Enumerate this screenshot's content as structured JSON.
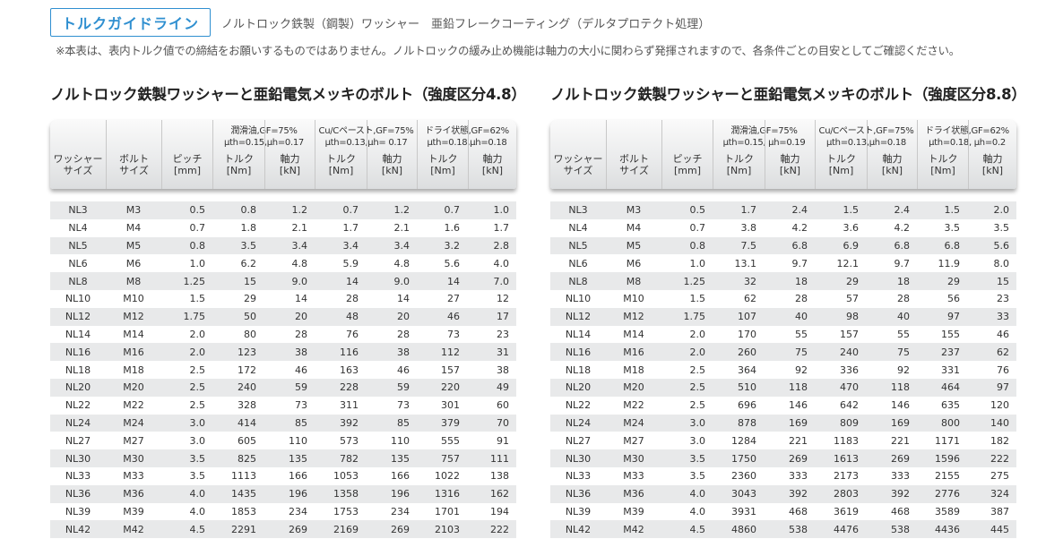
{
  "header": {
    "badge": "トルクガイドライン",
    "subtitle": "ノルトロック鉄製（鋼製）ワッシャー　亜鉛フレークコーティング（デルタプロテクト処理）",
    "notice": "※本表は、表内トルク値での締結をお願いするものではありません。ノルトロックの緩み止め機能は軸力の大小に関わらず発揮されますので、各条件ごとの目安としてご確認ください。"
  },
  "tables": [
    {
      "title": "ノルトロック鉄製ワッシャーと亜鉛電気メッキのボルト（強度区分4.8）",
      "columns": {
        "washer": "ワッシャーサイズ",
        "washer_l1": "ワッシャー",
        "washer_l2": "サイズ",
        "bolt_l1": "ボルト",
        "bolt_l2": "サイズ",
        "pitch_l1": "ピッチ",
        "pitch_l2": "[mm]",
        "torque_l1": "トルク",
        "torque_l2": "[Nm]",
        "axial_l1": "軸力",
        "axial_l2": "[kN]"
      },
      "groups": [
        {
          "line1": "潤滑油,GF=75%",
          "line2": "μth=0.15,μh=0.17"
        },
        {
          "line1": "Cu/Cペースト,GF=75%",
          "line2": "μth=0.13,μh= 0.17"
        },
        {
          "line1": "ドライ状態,GF=62%",
          "line2": "μth=0.18,μh=0.18"
        }
      ],
      "rows": [
        [
          "NL3",
          "M3",
          "0.5",
          "0.8",
          "1.2",
          "0.7",
          "1.2",
          "0.7",
          "1.0"
        ],
        [
          "NL4",
          "M4",
          "0.7",
          "1.8",
          "2.1",
          "1.7",
          "2.1",
          "1.6",
          "1.7"
        ],
        [
          "NL5",
          "M5",
          "0.8",
          "3.5",
          "3.4",
          "3.4",
          "3.4",
          "3.2",
          "2.8"
        ],
        [
          "NL6",
          "M6",
          "1.0",
          "6.2",
          "4.8",
          "5.9",
          "4.8",
          "5.6",
          "4.0"
        ],
        [
          "NL8",
          "M8",
          "1.25",
          "15",
          "9.0",
          "14",
          "9.0",
          "14",
          "7.0"
        ],
        [
          "NL10",
          "M10",
          "1.5",
          "29",
          "14",
          "28",
          "14",
          "27",
          "12"
        ],
        [
          "NL12",
          "M12",
          "1.75",
          "50",
          "20",
          "48",
          "20",
          "46",
          "17"
        ],
        [
          "NL14",
          "M14",
          "2.0",
          "80",
          "28",
          "76",
          "28",
          "73",
          "23"
        ],
        [
          "NL16",
          "M16",
          "2.0",
          "123",
          "38",
          "116",
          "38",
          "112",
          "31"
        ],
        [
          "NL18",
          "M18",
          "2.5",
          "172",
          "46",
          "163",
          "46",
          "157",
          "38"
        ],
        [
          "NL20",
          "M20",
          "2.5",
          "240",
          "59",
          "228",
          "59",
          "220",
          "49"
        ],
        [
          "NL22",
          "M22",
          "2.5",
          "328",
          "73",
          "311",
          "73",
          "301",
          "60"
        ],
        [
          "NL24",
          "M24",
          "3.0",
          "414",
          "85",
          "392",
          "85",
          "379",
          "70"
        ],
        [
          "NL27",
          "M27",
          "3.0",
          "605",
          "110",
          "573",
          "110",
          "555",
          "91"
        ],
        [
          "NL30",
          "M30",
          "3.5",
          "825",
          "135",
          "782",
          "135",
          "757",
          "111"
        ],
        [
          "NL33",
          "M33",
          "3.5",
          "1113",
          "166",
          "1053",
          "166",
          "1022",
          "138"
        ],
        [
          "NL36",
          "M36",
          "4.0",
          "1435",
          "196",
          "1358",
          "196",
          "1316",
          "162"
        ],
        [
          "NL39",
          "M39",
          "4.0",
          "1853",
          "234",
          "1753",
          "234",
          "1701",
          "194"
        ],
        [
          "NL42",
          "M42",
          "4.5",
          "2291",
          "269",
          "2169",
          "269",
          "2103",
          "222"
        ]
      ]
    },
    {
      "title": "ノルトロック鉄製ワッシャーと亜鉛電気メッキのボルト（強度区分8.8）",
      "columns": {
        "washer_l1": "ワッシャー",
        "washer_l2": "サイズ",
        "bolt_l1": "ボルト",
        "bolt_l2": "サイズ",
        "pitch_l1": "ピッチ",
        "pitch_l2": "[mm]",
        "torque_l1": "トルク",
        "torque_l2": "[Nm]",
        "axial_l1": "軸力",
        "axial_l2": "[kN]"
      },
      "groups": [
        {
          "line1": "潤滑油,GF=75%",
          "line2": "μth=0.15, μh=0.19"
        },
        {
          "line1": "Cu/Cペースト,GF=75%",
          "line2": "μth=0.13,μh=0.18"
        },
        {
          "line1": "ドライ状態,GF=62%",
          "line2": "μth=0.18, μh=0.2"
        }
      ],
      "rows": [
        [
          "NL3",
          "M3",
          "0.5",
          "1.7",
          "2.4",
          "1.5",
          "2.4",
          "1.5",
          "2.0"
        ],
        [
          "NL4",
          "M4",
          "0.7",
          "3.8",
          "4.2",
          "3.6",
          "4.2",
          "3.5",
          "3.5"
        ],
        [
          "NL5",
          "M5",
          "0.8",
          "7.5",
          "6.8",
          "6.9",
          "6.8",
          "6.8",
          "5.6"
        ],
        [
          "NL6",
          "M6",
          "1.0",
          "13.1",
          "9.7",
          "12.1",
          "9.7",
          "11.9",
          "8.0"
        ],
        [
          "NL8",
          "M8",
          "1.25",
          "32",
          "18",
          "29",
          "18",
          "29",
          "15"
        ],
        [
          "NL10",
          "M10",
          "1.5",
          "62",
          "28",
          "57",
          "28",
          "56",
          "23"
        ],
        [
          "NL12",
          "M12",
          "1.75",
          "107",
          "40",
          "98",
          "40",
          "97",
          "33"
        ],
        [
          "NL14",
          "M14",
          "2.0",
          "170",
          "55",
          "157",
          "55",
          "155",
          "46"
        ],
        [
          "NL16",
          "M16",
          "2.0",
          "260",
          "75",
          "240",
          "75",
          "237",
          "62"
        ],
        [
          "NL18",
          "M18",
          "2.5",
          "364",
          "92",
          "336",
          "92",
          "331",
          "76"
        ],
        [
          "NL20",
          "M20",
          "2.5",
          "510",
          "118",
          "470",
          "118",
          "464",
          "97"
        ],
        [
          "NL22",
          "M22",
          "2.5",
          "696",
          "146",
          "642",
          "146",
          "635",
          "120"
        ],
        [
          "NL24",
          "M24",
          "3.0",
          "878",
          "169",
          "809",
          "169",
          "800",
          "140"
        ],
        [
          "NL27",
          "M27",
          "3.0",
          "1284",
          "221",
          "1183",
          "221",
          "1171",
          "182"
        ],
        [
          "NL30",
          "M30",
          "3.5",
          "1750",
          "269",
          "1613",
          "269",
          "1596",
          "222"
        ],
        [
          "NL33",
          "M33",
          "3.5",
          "2360",
          "333",
          "2173",
          "333",
          "2155",
          "275"
        ],
        [
          "NL36",
          "M36",
          "4.0",
          "3043",
          "392",
          "2803",
          "392",
          "2776",
          "324"
        ],
        [
          "NL39",
          "M39",
          "4.0",
          "3931",
          "468",
          "3619",
          "468",
          "3589",
          "387"
        ],
        [
          "NL42",
          "M42",
          "4.5",
          "4860",
          "538",
          "4476",
          "538",
          "4436",
          "445"
        ]
      ]
    }
  ]
}
